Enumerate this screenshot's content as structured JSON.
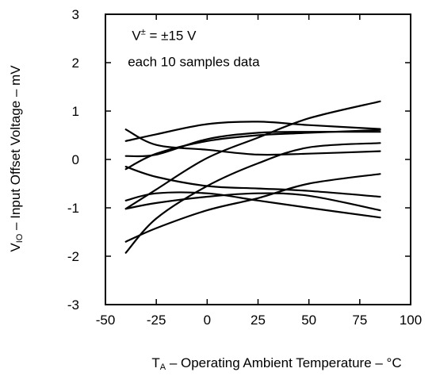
{
  "chart_data": {
    "type": "line",
    "title": "",
    "xlabel": {
      "main": "T",
      "sub": "A",
      "rest": " – Operating Ambient Temperature – °C"
    },
    "ylabel": {
      "main": "V",
      "sub": "IO",
      "rest": " – Input Offset Voltage – mV"
    },
    "xlim": [
      -50,
      100
    ],
    "ylim": [
      -3,
      3
    ],
    "xticks": [
      -50,
      -25,
      0,
      25,
      50,
      75,
      100
    ],
    "xtick_labels": [
      "-50",
      "-25",
      "0",
      "25",
      "50",
      "75",
      "100"
    ],
    "yticks": [
      -3,
      -2,
      -1,
      0,
      1,
      2,
      3
    ],
    "ytick_labels": [
      "-3",
      "-2",
      "-1",
      "0",
      "1",
      "2",
      "3"
    ],
    "grid": false,
    "annotations": [
      {
        "text_main": "V",
        "text_sup": "±",
        "text_rest": " = ±15 V",
        "x": -37,
        "y": 2.47
      },
      {
        "text_main": "each 10 samples data",
        "text_sup": "",
        "text_rest": "",
        "x": -39,
        "y": 1.93
      }
    ],
    "series": [
      {
        "x": [
          -40,
          -25,
          0,
          25,
          50,
          85
        ],
        "values": [
          0.62,
          0.3,
          0.2,
          0.1,
          0.12,
          0.17
        ]
      },
      {
        "x": [
          -40,
          -25,
          0,
          25,
          50,
          85
        ],
        "values": [
          0.38,
          0.52,
          0.73,
          0.78,
          0.71,
          0.63
        ]
      },
      {
        "x": [
          -40,
          -25,
          0,
          25,
          50,
          85
        ],
        "values": [
          0.07,
          0.1,
          0.42,
          0.55,
          0.57,
          0.57
        ]
      },
      {
        "x": [
          -40,
          -25,
          0,
          25,
          50,
          85
        ],
        "values": [
          -0.2,
          0.12,
          0.38,
          0.5,
          0.55,
          0.61
        ]
      },
      {
        "x": [
          -40,
          -25,
          0,
          25,
          50,
          85
        ],
        "values": [
          -0.15,
          -0.36,
          -0.55,
          -0.6,
          -0.65,
          -0.77
        ]
      },
      {
        "x": [
          -40,
          -25,
          0,
          25,
          50,
          85
        ],
        "values": [
          -1.02,
          -0.62,
          0.03,
          0.45,
          0.85,
          1.2
        ]
      },
      {
        "x": [
          -40,
          -25,
          0,
          25,
          50,
          85
        ],
        "values": [
          -1.02,
          -0.9,
          -0.77,
          -0.7,
          -0.75,
          -1.05
        ]
      },
      {
        "x": [
          -40,
          -25,
          0,
          25,
          50,
          85
        ],
        "values": [
          -0.85,
          -0.7,
          -0.7,
          -0.85,
          -1.0,
          -1.2
        ]
      },
      {
        "x": [
          -40,
          -25,
          0,
          25,
          50,
          85
        ],
        "values": [
          -1.7,
          -1.42,
          -1.05,
          -0.8,
          -0.5,
          -0.3
        ]
      },
      {
        "x": [
          -40,
          -25,
          0,
          25,
          50,
          85
        ],
        "values": [
          -1.93,
          -1.22,
          -0.55,
          -0.08,
          0.25,
          0.34
        ]
      }
    ]
  }
}
